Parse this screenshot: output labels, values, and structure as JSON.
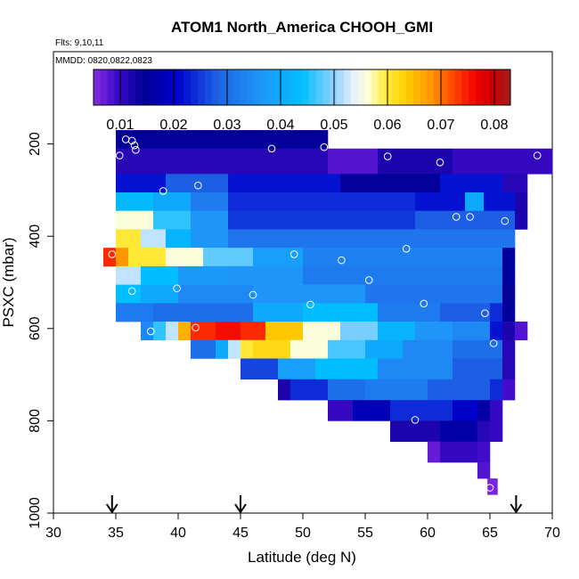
{
  "chart_data": {
    "type": "heatmap",
    "title": "ATOM1 North_America CHOOH_GMI",
    "subtitle_flights": "Flts: 9,10,11",
    "subtitle_dates": "MMDD: 0820,0822,0823",
    "xlabel": "Latitude (deg N)",
    "ylabel": "PSXC (mbar)",
    "xlim": [
      30,
      70
    ],
    "ylim": [
      1000,
      0
    ],
    "x_ticks": [
      "30",
      "35",
      "40",
      "45",
      "50",
      "55",
      "60",
      "65",
      "70"
    ],
    "y_ticks": [
      "200",
      "400",
      "600",
      "800",
      "1000"
    ],
    "colorbar": {
      "range": [
        0.005,
        0.083
      ],
      "tick_labels": [
        "0.01",
        "0.02",
        "0.03",
        "0.04",
        "0.05",
        "0.06",
        "0.07",
        "0.08"
      ]
    },
    "flight_markers_lat": [
      34.7,
      45,
      67.1
    ],
    "bands": [
      {
        "p": [
          170,
          210
        ],
        "cells": [
          [
            35,
            52,
            0.014
          ]
        ]
      },
      {
        "p": [
          210,
          265
        ],
        "cells": [
          [
            35,
            52,
            0.011
          ],
          [
            52,
            56,
            0.008
          ],
          [
            56,
            62,
            0.012
          ],
          [
            62,
            70,
            0.01
          ]
        ]
      },
      {
        "p": [
          265,
          305
        ],
        "cells": [
          [
            35,
            39,
            0.022
          ],
          [
            39,
            44,
            0.028
          ],
          [
            44,
            53,
            0.022
          ],
          [
            53,
            61,
            0.014
          ],
          [
            61,
            66,
            0.022
          ],
          [
            66,
            68,
            0.011
          ]
        ]
      },
      {
        "p": [
          305,
          345
        ],
        "cells": [
          [
            35,
            38,
            0.043
          ],
          [
            38,
            41,
            0.04
          ],
          [
            41,
            44,
            0.032
          ],
          [
            44,
            59,
            0.024
          ],
          [
            59,
            63,
            0.022
          ],
          [
            63,
            64.5,
            0.04
          ],
          [
            64.5,
            67,
            0.022
          ],
          [
            67,
            68,
            0.012
          ]
        ]
      },
      {
        "p": [
          345,
          385
        ],
        "cells": [
          [
            35,
            38,
            0.056
          ],
          [
            38,
            41,
            0.046
          ],
          [
            41,
            44,
            0.036
          ],
          [
            44,
            59,
            0.025
          ],
          [
            59,
            67,
            0.028
          ],
          [
            67,
            68,
            0.012
          ]
        ]
      },
      {
        "p": [
          385,
          425
        ],
        "cells": [
          [
            35,
            37,
            0.06
          ],
          [
            37,
            39,
            0.052
          ],
          [
            39,
            41,
            0.042
          ],
          [
            41,
            44,
            0.036
          ],
          [
            44,
            67,
            0.031
          ]
        ]
      },
      {
        "p": [
          425,
          465
        ],
        "cells": [
          [
            34,
            35,
            0.074
          ],
          [
            35,
            36,
            0.068
          ],
          [
            36,
            39,
            0.06
          ],
          [
            39,
            42,
            0.056
          ],
          [
            42,
            46,
            0.048
          ],
          [
            46,
            50,
            0.038
          ],
          [
            50,
            66,
            0.033
          ],
          [
            66,
            67,
            0.015
          ]
        ]
      },
      {
        "p": [
          465,
          505
        ],
        "cells": [
          [
            35,
            37,
            0.052
          ],
          [
            37,
            40,
            0.044
          ],
          [
            40,
            44,
            0.037
          ],
          [
            44,
            50,
            0.036
          ],
          [
            50,
            66,
            0.032
          ],
          [
            66,
            67,
            0.015
          ]
        ]
      },
      {
        "p": [
          505,
          545
        ],
        "cells": [
          [
            35,
            37,
            0.044
          ],
          [
            37,
            40,
            0.04
          ],
          [
            40,
            46,
            0.034
          ],
          [
            46,
            55,
            0.036
          ],
          [
            55,
            66,
            0.031
          ],
          [
            66,
            67,
            0.014
          ]
        ]
      },
      {
        "p": [
          545,
          585
        ],
        "cells": [
          [
            35,
            38,
            0.032
          ],
          [
            38,
            46,
            0.03
          ],
          [
            46,
            50,
            0.04
          ],
          [
            50,
            56,
            0.044
          ],
          [
            56,
            61,
            0.032
          ],
          [
            61,
            65,
            0.028
          ],
          [
            65,
            66,
            0.024
          ],
          [
            66,
            67,
            0.015
          ]
        ]
      },
      {
        "p": [
          585,
          625
        ],
        "cells": [
          [
            37,
            38,
            0.034
          ],
          [
            38,
            39,
            0.046
          ],
          [
            39,
            40,
            0.052
          ],
          [
            40,
            41,
            0.066
          ],
          [
            41,
            43,
            0.074
          ],
          [
            43,
            45,
            0.076
          ],
          [
            45,
            47,
            0.074
          ],
          [
            47,
            50,
            0.064
          ],
          [
            50,
            53,
            0.056
          ],
          [
            53,
            56,
            0.049
          ],
          [
            56,
            59,
            0.042
          ],
          [
            59,
            62,
            0.036
          ],
          [
            62,
            65,
            0.034
          ],
          [
            65,
            66,
            0.022
          ],
          [
            66,
            67,
            0.012
          ],
          [
            67,
            68,
            0.008
          ]
        ]
      },
      {
        "p": [
          625,
          665
        ],
        "cells": [
          [
            41,
            43,
            0.03
          ],
          [
            43,
            44,
            0.04
          ],
          [
            44,
            45,
            0.052
          ],
          [
            45,
            46,
            0.06
          ],
          [
            46,
            49,
            0.062
          ],
          [
            49,
            52,
            0.056
          ],
          [
            52,
            55,
            0.047
          ],
          [
            55,
            58,
            0.04
          ],
          [
            58,
            62,
            0.034
          ],
          [
            62,
            66,
            0.03
          ],
          [
            66,
            67,
            0.011
          ]
        ]
      },
      {
        "p": [
          665,
          710
        ],
        "cells": [
          [
            45,
            48,
            0.026
          ],
          [
            48,
            51,
            0.038
          ],
          [
            51,
            56,
            0.044
          ],
          [
            56,
            62,
            0.034
          ],
          [
            62,
            66,
            0.028
          ],
          [
            66,
            67,
            0.011
          ]
        ]
      },
      {
        "p": [
          710,
          755
        ],
        "cells": [
          [
            48,
            49,
            0.012
          ],
          [
            49,
            52,
            0.024
          ],
          [
            52,
            55,
            0.03
          ],
          [
            55,
            60,
            0.032
          ],
          [
            60,
            65,
            0.028
          ],
          [
            65,
            66,
            0.024
          ],
          [
            66,
            67,
            0.009
          ]
        ]
      },
      {
        "p": [
          755,
          800
        ],
        "cells": [
          [
            52,
            54,
            0.01
          ],
          [
            54,
            57,
            0.018
          ],
          [
            57,
            62,
            0.024
          ],
          [
            62,
            64,
            0.02
          ],
          [
            64,
            65,
            0.016
          ],
          [
            65,
            66,
            0.01
          ]
        ]
      },
      {
        "p": [
          800,
          845
        ],
        "cells": [
          [
            57,
            61,
            0.012
          ],
          [
            61,
            64,
            0.016
          ],
          [
            64,
            65,
            0.011
          ],
          [
            65,
            66,
            0.01
          ]
        ]
      },
      {
        "p": [
          845,
          890
        ],
        "cells": [
          [
            60,
            61,
            0.007
          ],
          [
            61,
            64,
            0.01
          ],
          [
            64,
            65,
            0.009
          ]
        ]
      },
      {
        "p": [
          890,
          925
        ],
        "cells": [
          [
            64,
            65,
            0.008
          ]
        ]
      },
      {
        "p": [
          925,
          960
        ],
        "cells": [
          [
            64.8,
            65.6,
            0.006
          ]
        ]
      }
    ],
    "samples": [
      [
        35.3,
        225
      ],
      [
        35.8,
        190
      ],
      [
        36.3,
        193
      ],
      [
        36.5,
        203
      ],
      [
        36.6,
        213
      ],
      [
        47.5,
        210
      ],
      [
        51.7,
        207
      ],
      [
        56.8,
        227
      ],
      [
        61.0,
        240
      ],
      [
        68.8,
        225
      ],
      [
        38.8,
        302
      ],
      [
        41.6,
        290
      ],
      [
        62.3,
        358
      ],
      [
        63.4,
        358
      ],
      [
        66.2,
        367
      ],
      [
        34.7,
        439
      ],
      [
        49.3,
        439
      ],
      [
        53.1,
        452
      ],
      [
        58.3,
        427
      ],
      [
        36.3,
        519
      ],
      [
        39.9,
        513
      ],
      [
        46.0,
        527
      ],
      [
        50.6,
        548
      ],
      [
        55.3,
        495
      ],
      [
        59.7,
        546
      ],
      [
        64.6,
        567
      ],
      [
        37.8,
        606
      ],
      [
        41.4,
        598
      ],
      [
        65.3,
        632
      ],
      [
        59.0,
        798
      ],
      [
        65.0,
        945
      ]
    ]
  }
}
